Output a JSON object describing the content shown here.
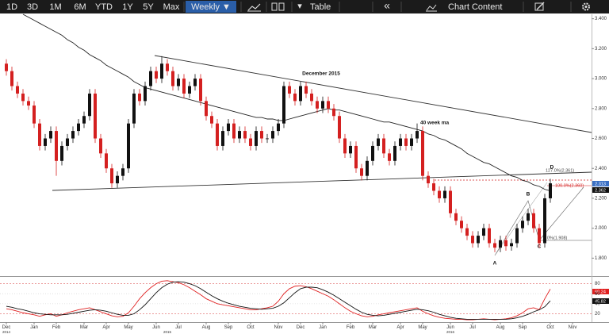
{
  "toolbar": {
    "buttons": [
      "1D",
      "3D",
      "1M",
      "6M",
      "YTD",
      "1Y",
      "5Y",
      "Max"
    ],
    "interval": "Weekly ▼",
    "dropdown": "▾",
    "table": "Table",
    "collapse": "«",
    "content": "Chart Content"
  },
  "chart_data": [
    {
      "type": "candlestick",
      "up_color": "#111111",
      "down_color": "#d42020",
      "ylim": [
        1.68,
        3.43
      ],
      "yticks": [
        {
          "value": 1.8,
          "label": "1.800"
        },
        {
          "value": 2.0,
          "label": "2.000"
        },
        {
          "value": 2.2,
          "label": "2.200"
        },
        {
          "value": 2.4,
          "label": "2.400"
        },
        {
          "value": 2.6,
          "label": "2.600"
        },
        {
          "value": 2.8,
          "label": "2.800"
        },
        {
          "value": 3.0,
          "label": "3.000"
        },
        {
          "value": 3.2,
          "label": "3.200"
        },
        {
          "value": 3.4,
          "label": "3.400"
        }
      ],
      "open": [
        3.1,
        3.05,
        2.95,
        2.9,
        2.85,
        2.82,
        2.7,
        2.55,
        2.6,
        2.65,
        2.45,
        2.55,
        2.6,
        2.65,
        2.7,
        2.75,
        2.9,
        2.6,
        2.5,
        2.4,
        2.3,
        2.35,
        2.4,
        2.7,
        2.9,
        2.85,
        2.95,
        3.05,
        3.0,
        3.1,
        3.05,
        2.95,
        3.0,
        2.9,
        2.95,
        3.0,
        2.85,
        2.75,
        2.7,
        2.55,
        2.65,
        2.7,
        2.6,
        2.65,
        2.6,
        2.55,
        2.65,
        2.6,
        2.6,
        2.65,
        2.7,
        2.95,
        2.9,
        2.85,
        2.95,
        2.9,
        2.85,
        2.8,
        2.85,
        2.8,
        2.75,
        2.6,
        2.5,
        2.55,
        2.4,
        2.35,
        2.45,
        2.55,
        2.6,
        2.5,
        2.45,
        2.55,
        2.6,
        2.55,
        2.6,
        2.65,
        2.35,
        2.3,
        2.25,
        2.2,
        2.25,
        2.1,
        2.05,
        2.0,
        1.95,
        1.9,
        1.95,
        2.0,
        1.9,
        1.87,
        1.92,
        1.88,
        1.9,
        2.0,
        2.05,
        2.1,
        2.0,
        1.9,
        2.2,
        null,
        null,
        null,
        null
      ],
      "high": [
        3.13,
        3.08,
        2.98,
        2.93,
        2.88,
        2.85,
        2.73,
        2.63,
        2.68,
        2.68,
        2.58,
        2.63,
        2.68,
        2.73,
        2.78,
        2.93,
        2.93,
        2.63,
        2.53,
        2.43,
        2.38,
        2.43,
        2.73,
        2.93,
        2.93,
        2.98,
        3.08,
        3.08,
        3.15,
        3.13,
        3.08,
        3.03,
        3.03,
        2.98,
        3.03,
        3.03,
        2.88,
        2.78,
        2.73,
        2.68,
        2.73,
        2.73,
        2.68,
        2.68,
        2.63,
        2.68,
        2.68,
        2.63,
        2.68,
        2.73,
        2.98,
        2.98,
        2.93,
        2.98,
        2.98,
        2.93,
        2.88,
        2.88,
        2.88,
        2.83,
        2.78,
        2.63,
        2.58,
        2.58,
        2.43,
        2.48,
        2.58,
        2.63,
        2.63,
        2.53,
        2.58,
        2.63,
        2.63,
        2.63,
        2.7,
        2.68,
        2.38,
        2.33,
        2.28,
        2.28,
        2.28,
        2.13,
        2.08,
        2.03,
        1.98,
        1.98,
        2.03,
        2.03,
        1.93,
        1.95,
        1.95,
        1.93,
        2.03,
        2.08,
        2.13,
        2.13,
        2.03,
        2.23,
        2.33,
        null,
        null,
        null,
        null
      ],
      "low": [
        3.02,
        2.92,
        2.87,
        2.82,
        2.79,
        2.67,
        2.52,
        2.52,
        2.57,
        2.35,
        2.42,
        2.52,
        2.57,
        2.62,
        2.67,
        2.72,
        2.57,
        2.47,
        2.37,
        2.27,
        2.27,
        2.32,
        2.37,
        2.67,
        2.82,
        2.82,
        2.92,
        2.97,
        2.97,
        3.02,
        2.92,
        2.92,
        2.87,
        2.87,
        2.92,
        2.82,
        2.72,
        2.67,
        2.52,
        2.52,
        2.62,
        2.57,
        2.57,
        2.57,
        2.52,
        2.52,
        2.57,
        2.57,
        2.57,
        2.62,
        2.67,
        2.87,
        2.82,
        2.82,
        2.87,
        2.82,
        2.77,
        2.77,
        2.77,
        2.72,
        2.57,
        2.47,
        2.47,
        2.37,
        2.32,
        2.32,
        2.42,
        2.52,
        2.47,
        2.42,
        2.42,
        2.52,
        2.52,
        2.52,
        2.57,
        2.32,
        2.27,
        2.22,
        2.17,
        2.17,
        2.07,
        2.02,
        1.97,
        1.92,
        1.87,
        1.87,
        1.92,
        1.87,
        1.84,
        1.84,
        1.85,
        1.85,
        1.87,
        1.97,
        2.02,
        1.97,
        1.87,
        1.87,
        2.17,
        null,
        null,
        null,
        null
      ],
      "close": [
        3.05,
        2.95,
        2.9,
        2.85,
        2.82,
        2.7,
        2.55,
        2.6,
        2.65,
        2.45,
        2.55,
        2.6,
        2.65,
        2.7,
        2.75,
        2.9,
        2.6,
        2.5,
        2.4,
        2.3,
        2.35,
        2.4,
        2.7,
        2.9,
        2.85,
        2.95,
        3.05,
        3.0,
        3.1,
        3.05,
        2.95,
        3.0,
        2.9,
        2.95,
        3.0,
        2.85,
        2.75,
        2.7,
        2.55,
        2.65,
        2.7,
        2.6,
        2.65,
        2.6,
        2.55,
        2.65,
        2.6,
        2.6,
        2.65,
        2.7,
        2.95,
        2.9,
        2.85,
        2.95,
        2.9,
        2.85,
        2.8,
        2.85,
        2.8,
        2.75,
        2.6,
        2.5,
        2.55,
        2.4,
        2.35,
        2.45,
        2.55,
        2.6,
        2.5,
        2.45,
        2.55,
        2.6,
        2.55,
        2.6,
        2.65,
        2.35,
        2.3,
        2.25,
        2.2,
        2.25,
        2.1,
        2.05,
        2.0,
        1.95,
        1.9,
        1.95,
        2.0,
        1.9,
        1.87,
        1.92,
        1.88,
        1.9,
        2.0,
        2.05,
        2.1,
        2.0,
        1.9,
        2.2,
        2.3,
        null,
        null,
        null,
        null
      ],
      "series": [
        {
          "color": "#222222",
          "values": [
            null,
            null,
            null,
            3.43,
            3.41,
            3.39,
            3.37,
            3.35,
            3.33,
            3.31,
            3.29,
            3.26,
            3.24,
            3.21,
            3.19,
            3.16,
            3.14,
            3.12,
            3.09,
            3.07,
            3.05,
            3.03,
            3.01,
            2.98,
            2.96,
            2.94,
            2.93,
            2.92,
            2.91,
            2.9,
            2.89,
            2.88,
            2.87,
            2.86,
            2.85,
            2.84,
            2.83,
            2.82,
            2.81,
            2.8,
            2.79,
            2.78,
            2.77,
            2.76,
            2.75,
            2.74,
            2.74,
            2.73,
            2.73,
            2.72,
            2.72,
            2.73,
            2.74,
            2.75,
            2.76,
            2.77,
            2.78,
            2.79,
            2.8,
            2.79,
            2.79,
            2.78,
            2.77,
            2.76,
            2.75,
            2.74,
            2.73,
            2.72,
            2.71,
            2.71,
            2.7,
            2.69,
            2.68,
            2.67,
            2.66,
            2.65,
            2.63,
            2.62,
            2.6,
            2.59,
            2.57,
            2.55,
            2.53,
            2.5,
            2.48,
            2.46,
            2.44,
            2.43,
            2.41,
            2.39,
            2.37,
            2.35,
            2.34,
            2.32,
            2.31,
            2.29,
            2.28,
            2.26,
            2.25,
            null,
            null,
            null,
            null
          ]
        }
      ],
      "annotations": [
        "December 2015",
        "40 week ma",
        "127.0%(2.361)",
        "100.0%(2.360)",
        "0%(1.908)",
        "A",
        "B",
        "C",
        "D"
      ],
      "badges": [
        "2.313",
        "2.362"
      ]
    },
    {
      "type": "line",
      "categories": [
        "Dec",
        null,
        null,
        null,
        null,
        "Jan",
        null,
        null,
        null,
        "Feb",
        null,
        null,
        null,
        null,
        "Mar",
        null,
        null,
        null,
        "Apr",
        null,
        null,
        null,
        "May",
        null,
        null,
        null,
        null,
        "Jun",
        null,
        null,
        null,
        "Jul",
        null,
        null,
        null,
        null,
        "Aug",
        null,
        null,
        null,
        "Sep",
        null,
        null,
        null,
        "Oct",
        null,
        null,
        null,
        null,
        "Nov",
        null,
        null,
        null,
        "Dec",
        null,
        null,
        null,
        "Jan",
        null,
        null,
        null,
        null,
        "Feb",
        null,
        null,
        null,
        "Mar",
        null,
        null,
        null,
        null,
        "Apr",
        null,
        null,
        null,
        "May",
        null,
        null,
        null,
        null,
        "Jun",
        null,
        null,
        null,
        "Jul",
        null,
        null,
        null,
        null,
        "Aug",
        null,
        null,
        null,
        "Sep",
        null,
        null,
        null,
        null,
        "Oct",
        null,
        null,
        null,
        "Nov"
      ],
      "years": [
        "2014",
        "2015",
        "2016"
      ],
      "ylim": [
        5,
        92
      ],
      "yticks": [
        20,
        40,
        60,
        80
      ],
      "series": [
        {
          "color": "#e02020",
          "values": [
            30,
            28,
            25,
            22,
            20,
            18,
            15,
            18,
            20,
            15,
            18,
            22,
            25,
            28,
            30,
            32,
            28,
            24,
            20,
            16,
            14,
            15,
            22,
            35,
            50,
            62,
            72,
            80,
            85,
            86,
            84,
            82,
            78,
            72,
            65,
            58,
            50,
            45,
            40,
            38,
            36,
            34,
            32,
            30,
            28,
            28,
            30,
            32,
            35,
            45,
            60,
            70,
            75,
            76,
            74,
            70,
            65,
            60,
            55,
            48,
            40,
            32,
            25,
            20,
            16,
            14,
            15,
            18,
            20,
            22,
            24,
            26,
            28,
            30,
            32,
            25,
            20,
            16,
            13,
            11,
            10,
            9,
            9,
            8,
            8,
            9,
            10,
            9,
            8,
            9,
            10,
            12,
            16,
            22,
            30,
            32,
            28,
            50,
            69.24,
            null,
            null,
            null,
            null
          ]
        },
        {
          "color": "#111111",
          "values": [
            35,
            33,
            30,
            28,
            25,
            22,
            20,
            19,
            18,
            18,
            18,
            19,
            21,
            23,
            25,
            27,
            28,
            27,
            25,
            22,
            19,
            17,
            17,
            20,
            28,
            38,
            50,
            62,
            72,
            79,
            83,
            84,
            83,
            80,
            76,
            70,
            63,
            56,
            50,
            45,
            41,
            38,
            35,
            33,
            31,
            30,
            29,
            30,
            31,
            35,
            42,
            52,
            62,
            70,
            73,
            73,
            72,
            68,
            63,
            57,
            50,
            43,
            36,
            29,
            23,
            19,
            17,
            16,
            17,
            19,
            21,
            23,
            25,
            27,
            29,
            28,
            26,
            23,
            19,
            16,
            13,
            11,
            10,
            9,
            9,
            9,
            9,
            9,
            9,
            9,
            9,
            10,
            12,
            15,
            19,
            24,
            28,
            34,
            45.82,
            null,
            null,
            null,
            null
          ]
        }
      ],
      "badges": [
        "69.24",
        "45.82"
      ]
    }
  ]
}
